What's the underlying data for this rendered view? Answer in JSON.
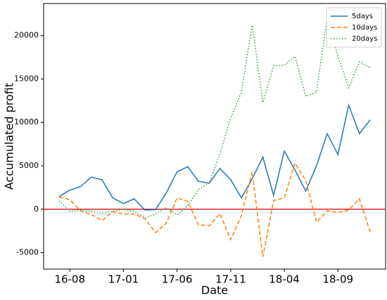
{
  "chart_data": {
    "type": "line",
    "xlabel": "Date",
    "ylabel": "Accumulated profit",
    "categories": [
      null,
      "16-08",
      null,
      null,
      null,
      null,
      "17-01",
      null,
      null,
      null,
      null,
      "17-06",
      null,
      null,
      null,
      null,
      "17-11",
      null,
      null,
      null,
      null,
      "18-04",
      null,
      null,
      null,
      null,
      "18-09",
      null,
      null,
      null
    ],
    "series": [
      {
        "name": "5days",
        "color": "#1f77b4",
        "style": "solid",
        "values": [
          1450,
          2200,
          2600,
          3700,
          3400,
          1300,
          650,
          1200,
          -100,
          -50,
          1900,
          4300,
          4900,
          3200,
          3000,
          4700,
          3400,
          1300,
          3500,
          6000,
          1600,
          6700,
          4500,
          2100,
          5000,
          8700,
          6300,
          12000,
          8700,
          10300
        ]
      },
      {
        "name": "10days",
        "color": "#ff7f0e",
        "style": "dashed",
        "values": [
          1400,
          1100,
          -200,
          -600,
          -1300,
          -300,
          -550,
          -550,
          -1100,
          -2700,
          -1600,
          1300,
          900,
          -1800,
          -1900,
          -500,
          -3500,
          -700,
          4300,
          -5500,
          1000,
          1300,
          5300,
          3300,
          -1500,
          -200,
          -400,
          -100,
          1200,
          -2600
        ]
      },
      {
        "name": "20days",
        "color": "#2ca02c",
        "style": "dotted",
        "values": [
          950,
          -250,
          -100,
          -250,
          -450,
          -250,
          0,
          -250,
          -1000,
          -550,
          150,
          -650,
          400,
          2300,
          3000,
          6400,
          10500,
          13500,
          21200,
          12300,
          16500,
          16600,
          17600,
          13000,
          13500,
          22200,
          17600,
          14000,
          17000,
          16300
        ]
      }
    ],
    "hline": 0,
    "hline_color": "#d62728",
    "ylim": [
      -6900,
      23700
    ],
    "yticks": [
      -5000,
      0,
      5000,
      10000,
      15000,
      20000
    ],
    "legend": "upper right"
  }
}
